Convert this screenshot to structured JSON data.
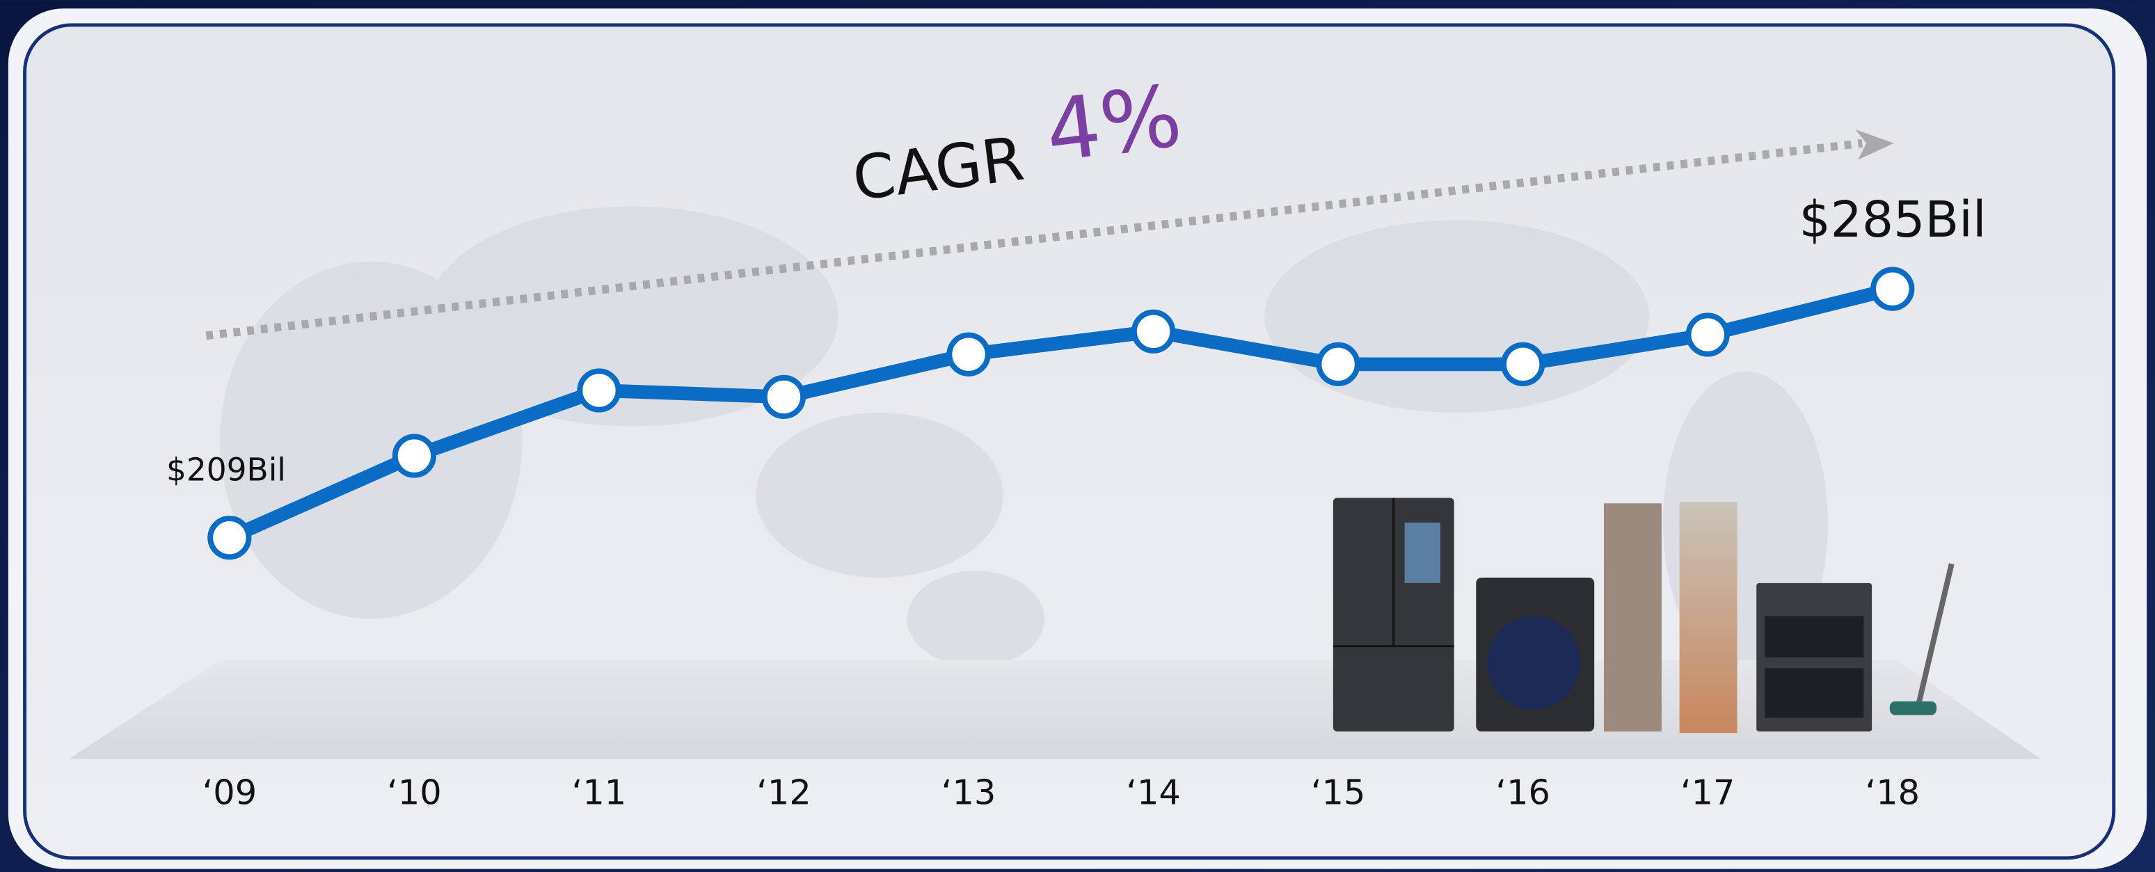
{
  "chart_data": {
    "type": "line",
    "annotation": {
      "label": "CAGR",
      "value": "4%"
    },
    "categories": [
      "‘09",
      "‘10",
      "‘11",
      "‘12",
      "‘13",
      "‘14",
      "‘15",
      "‘16",
      "‘17",
      "‘18"
    ],
    "series": [
      {
        "color": "#0a6cc4",
        "values": [
          209,
          234,
          254,
          252,
          265,
          272,
          262,
          262,
          271,
          285
        ],
        "value_labels": [
          "$209Bil",
          null,
          null,
          null,
          null,
          null,
          null,
          null,
          null,
          "$285Bil"
        ]
      }
    ]
  }
}
